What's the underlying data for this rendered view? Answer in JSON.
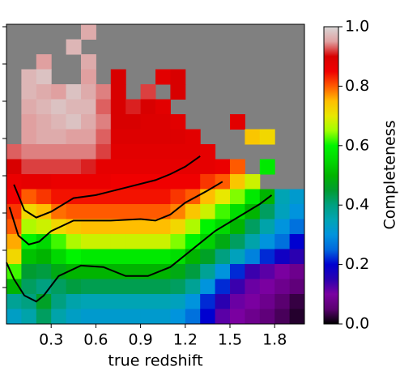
{
  "chart_data": {
    "type": "heatmap",
    "xlabel": "true redshift",
    "xlim": [
      0,
      2
    ],
    "xticks": [
      0.3,
      0.6,
      0.9,
      1.2,
      1.5,
      1.8
    ],
    "nan_color": "#808080",
    "values": [
      [
        null,
        null,
        null,
        null,
        null,
        0.96,
        null,
        null,
        null,
        null,
        null,
        null,
        null,
        null,
        null,
        null,
        null,
        null,
        null,
        null
      ],
      [
        null,
        null,
        null,
        null,
        0.97,
        null,
        null,
        null,
        null,
        null,
        null,
        null,
        null,
        null,
        null,
        null,
        null,
        null,
        null,
        null
      ],
      [
        null,
        null,
        0.95,
        null,
        null,
        0.96,
        null,
        null,
        null,
        null,
        null,
        null,
        null,
        null,
        null,
        null,
        null,
        null,
        null,
        null
      ],
      [
        null,
        0.97,
        0.98,
        null,
        null,
        0.95,
        null,
        0.9,
        null,
        null,
        0.88,
        0.9,
        null,
        null,
        null,
        null,
        null,
        null,
        null,
        null
      ],
      [
        null,
        0.97,
        0.96,
        0.95,
        0.98,
        0.96,
        0.94,
        0.9,
        null,
        0.92,
        null,
        0.9,
        null,
        null,
        null,
        null,
        null,
        null,
        null,
        null
      ],
      [
        null,
        0.96,
        0.97,
        0.98,
        0.97,
        0.97,
        0.93,
        0.9,
        0.91,
        0.9,
        0.88,
        null,
        null,
        null,
        null,
        null,
        null,
        null,
        null,
        null
      ],
      [
        null,
        0.95,
        0.96,
        0.97,
        0.98,
        0.96,
        0.94,
        0.9,
        0.9,
        0.89,
        0.89,
        0.88,
        null,
        null,
        null,
        0.88,
        null,
        null,
        null,
        null
      ],
      [
        null,
        0.95,
        0.96,
        0.96,
        0.95,
        0.95,
        0.93,
        0.89,
        0.89,
        0.89,
        0.89,
        0.89,
        0.88,
        null,
        null,
        null,
        0.74,
        0.72,
        null,
        null
      ],
      [
        0.93,
        0.94,
        0.94,
        0.94,
        0.94,
        0.94,
        0.92,
        0.88,
        0.88,
        0.88,
        0.88,
        0.88,
        0.88,
        0.87,
        null,
        null,
        null,
        null,
        null,
        null
      ],
      [
        0.9,
        0.92,
        0.92,
        0.92,
        0.92,
        0.91,
        0.87,
        0.87,
        0.87,
        0.87,
        0.87,
        0.87,
        0.87,
        0.87,
        0.86,
        0.8,
        null,
        0.58,
        null,
        null
      ],
      [
        0.86,
        0.87,
        0.87,
        0.86,
        0.86,
        0.86,
        0.86,
        0.85,
        0.85,
        0.85,
        0.85,
        0.85,
        0.85,
        0.82,
        0.8,
        0.74,
        0.68,
        null,
        null,
        null
      ],
      [
        0.85,
        0.8,
        0.82,
        0.84,
        0.84,
        0.84,
        0.84,
        0.84,
        0.84,
        0.84,
        0.84,
        0.82,
        0.8,
        0.75,
        0.7,
        0.64,
        0.58,
        0.5,
        0.35,
        0.32
      ],
      [
        0.82,
        0.72,
        0.75,
        0.79,
        0.8,
        0.8,
        0.8,
        0.8,
        0.8,
        0.8,
        0.8,
        0.78,
        0.74,
        0.68,
        0.62,
        0.56,
        0.5,
        0.42,
        0.34,
        0.3
      ],
      [
        0.8,
        0.66,
        0.68,
        0.72,
        0.74,
        0.75,
        0.75,
        0.75,
        0.75,
        0.75,
        0.75,
        0.72,
        0.66,
        0.6,
        0.55,
        0.5,
        0.42,
        0.36,
        0.3,
        0.26
      ],
      [
        0.76,
        0.6,
        0.55,
        0.62,
        0.66,
        0.68,
        0.68,
        0.68,
        0.68,
        0.68,
        0.68,
        0.64,
        0.6,
        0.54,
        0.48,
        0.42,
        0.36,
        0.3,
        0.26,
        0.2
      ],
      [
        0.72,
        0.52,
        0.5,
        0.55,
        0.6,
        0.58,
        0.58,
        0.58,
        0.58,
        0.58,
        0.58,
        0.56,
        0.5,
        0.46,
        0.4,
        0.34,
        0.28,
        0.22,
        0.18,
        0.15
      ],
      [
        0.62,
        0.45,
        0.44,
        0.48,
        0.5,
        0.5,
        0.5,
        0.5,
        0.5,
        0.5,
        0.5,
        0.48,
        0.44,
        0.38,
        0.3,
        0.22,
        0.14,
        0.12,
        0.1,
        0.08
      ],
      [
        0.5,
        0.42,
        0.4,
        0.42,
        0.44,
        0.43,
        0.43,
        0.43,
        0.43,
        0.43,
        0.43,
        0.42,
        0.38,
        0.3,
        0.22,
        0.14,
        0.11,
        0.1,
        0.08,
        0.06
      ],
      [
        0.38,
        0.4,
        0.46,
        0.4,
        0.36,
        0.35,
        0.35,
        0.35,
        0.35,
        0.35,
        0.35,
        0.34,
        0.3,
        0.22,
        0.15,
        0.11,
        0.1,
        0.08,
        0.05,
        0.03
      ],
      [
        0.33,
        0.36,
        0.42,
        0.36,
        0.33,
        0.32,
        0.32,
        0.32,
        0.32,
        0.32,
        0.32,
        0.3,
        0.26,
        0.2,
        0.12,
        0.1,
        0.08,
        0.06,
        0.04,
        0.02
      ]
    ],
    "contours": [
      {
        "color": "#000000",
        "x": [
          0.0,
          0.05,
          0.12,
          0.2,
          0.25,
          0.35,
          0.5,
          0.65,
          0.8,
          0.95,
          1.1,
          1.25,
          1.4,
          1.55,
          1.7,
          1.78
        ],
        "row": [
          15.9,
          17.0,
          18.1,
          18.5,
          18.1,
          16.8,
          16.1,
          16.2,
          16.8,
          16.8,
          16.2,
          15.0,
          13.8,
          12.9,
          12.0,
          11.4
        ]
      },
      {
        "color": "#000000",
        "x": [
          0.02,
          0.08,
          0.15,
          0.22,
          0.3,
          0.45,
          0.7,
          0.9,
          1.0,
          1.1,
          1.2,
          1.35,
          1.45
        ],
        "row": [
          12.2,
          14.1,
          14.7,
          14.5,
          13.8,
          13.1,
          13.1,
          13.0,
          13.1,
          12.7,
          11.9,
          11.1,
          10.5
        ]
      },
      {
        "color": "#000000",
        "x": [
          0.05,
          0.12,
          0.2,
          0.3,
          0.45,
          0.6,
          0.8,
          1.0,
          1.1,
          1.2,
          1.3
        ],
        "row": [
          10.7,
          12.4,
          12.9,
          12.5,
          11.6,
          11.4,
          10.9,
          10.4,
          10.0,
          9.5,
          8.8
        ]
      }
    ],
    "colorbar": {
      "label": "Completeness",
      "lim": [
        0,
        1
      ],
      "ticks": [
        {
          "value": 0,
          "label": "0.0"
        },
        {
          "value": 0.2,
          "label": "0.2"
        },
        {
          "value": 0.4,
          "label": "0.4"
        },
        {
          "value": 0.6,
          "label": "0.6"
        },
        {
          "value": 0.8,
          "label": "0.8"
        },
        {
          "value": 1,
          "label": "1.0"
        }
      ],
      "stops": [
        [
          0,
          "#000000"
        ],
        [
          0.05,
          "#5a0070"
        ],
        [
          0.1,
          "#7a00a0"
        ],
        [
          0.15,
          "#2a00b0"
        ],
        [
          0.2,
          "#0000d0"
        ],
        [
          0.25,
          "#0068dd"
        ],
        [
          0.3,
          "#0094dd"
        ],
        [
          0.35,
          "#00a4b4"
        ],
        [
          0.4,
          "#00a080"
        ],
        [
          0.45,
          "#009c30"
        ],
        [
          0.5,
          "#00b400"
        ],
        [
          0.55,
          "#00d800"
        ],
        [
          0.6,
          "#00f400"
        ],
        [
          0.65,
          "#a0ff00"
        ],
        [
          0.7,
          "#e8e800"
        ],
        [
          0.75,
          "#ffbe00"
        ],
        [
          0.8,
          "#ff5a00"
        ],
        [
          0.85,
          "#f00000"
        ],
        [
          0.9,
          "#d80000"
        ],
        [
          0.95,
          "#e0a0a0"
        ],
        [
          1,
          "#d8d8d8"
        ]
      ]
    }
  }
}
